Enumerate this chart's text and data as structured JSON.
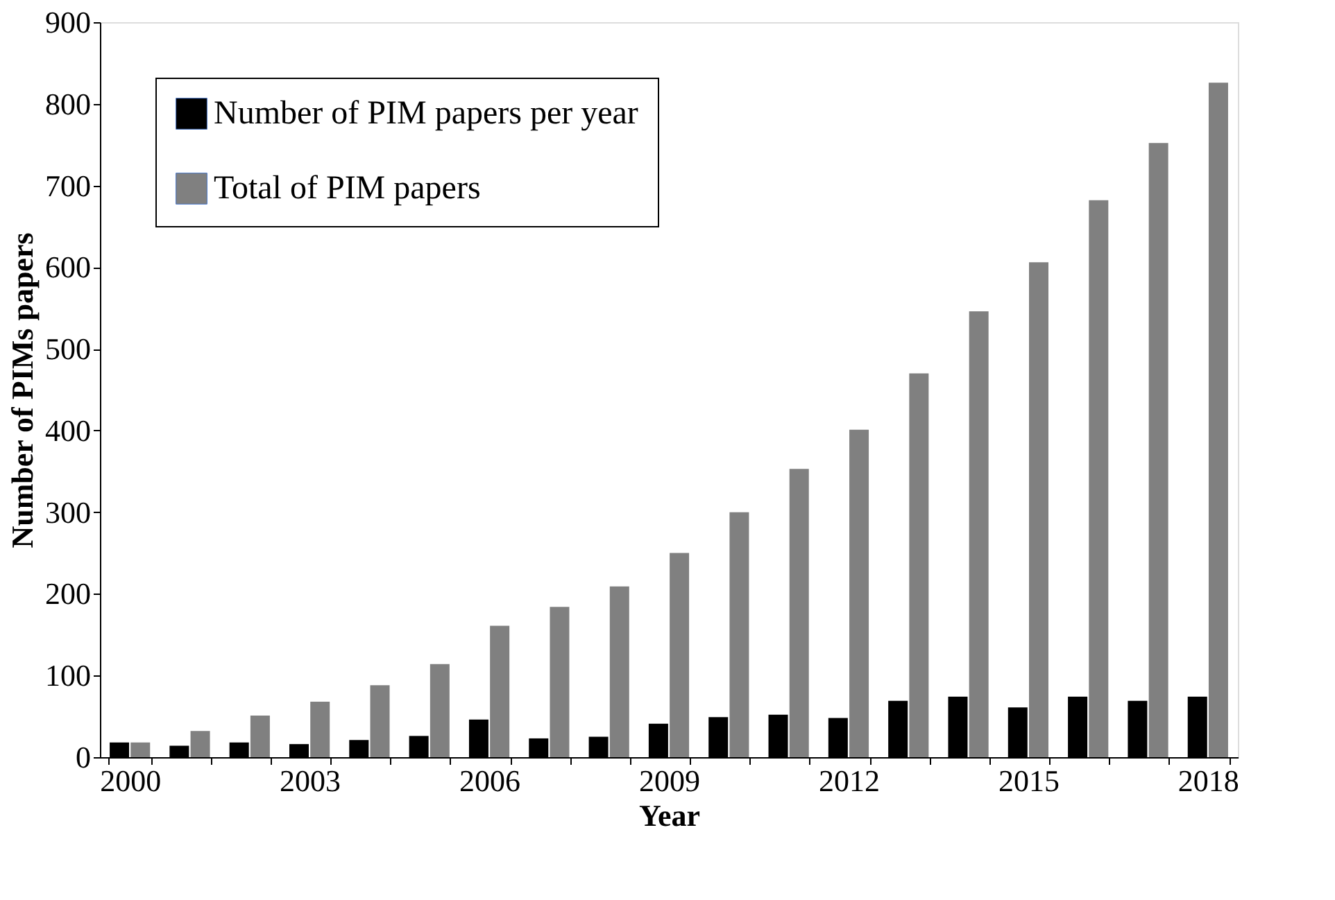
{
  "chart_data": {
    "type": "bar",
    "xlabel": "Year",
    "ylabel": "Number of PIMs papers",
    "categories": [
      "2000",
      null,
      null,
      "2003",
      null,
      null,
      "2006",
      null,
      null,
      "2009",
      null,
      null,
      "2012",
      null,
      null,
      "2015",
      null,
      null,
      "2018"
    ],
    "series": [
      {
        "name": "Number of PIM papers per year",
        "color": "#000000",
        "values": [
          18,
          14,
          18,
          16,
          21,
          26,
          46,
          23,
          25,
          41,
          49,
          52,
          48,
          69,
          74,
          61,
          74,
          69,
          74
        ]
      },
      {
        "name": "Total of PIM papers",
        "color": "#808080",
        "values": [
          18,
          32,
          51,
          68,
          88,
          114,
          161,
          184,
          209,
          250,
          300,
          353,
          401,
          470,
          546,
          606,
          682,
          752,
          826
        ]
      }
    ],
    "ylim": [
      0,
      900
    ],
    "yticks": [
      0,
      100,
      200,
      300,
      400,
      500,
      600,
      700,
      800,
      900
    ],
    "grid": false,
    "legend": "top left"
  }
}
